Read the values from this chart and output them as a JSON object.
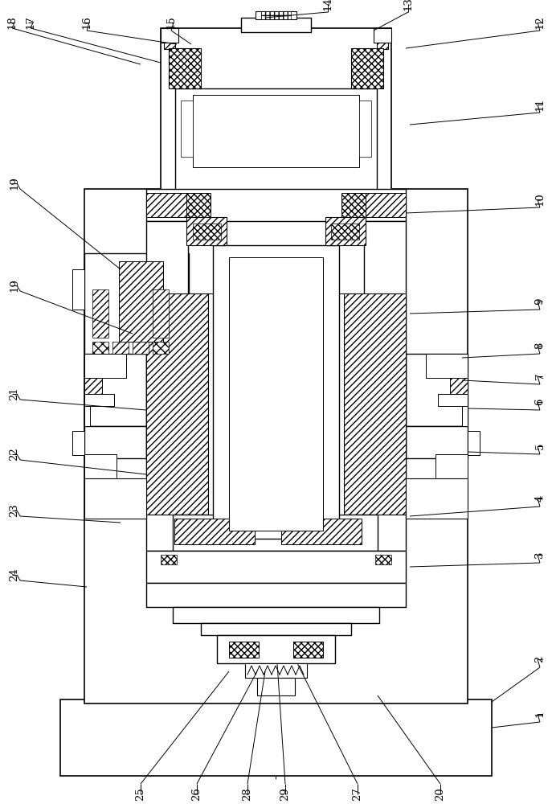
{
  "bg_color": "#ffffff",
  "line_color": "#000000",
  "fig_width": 6.87,
  "fig_height": 10.0,
  "dpi": 100
}
